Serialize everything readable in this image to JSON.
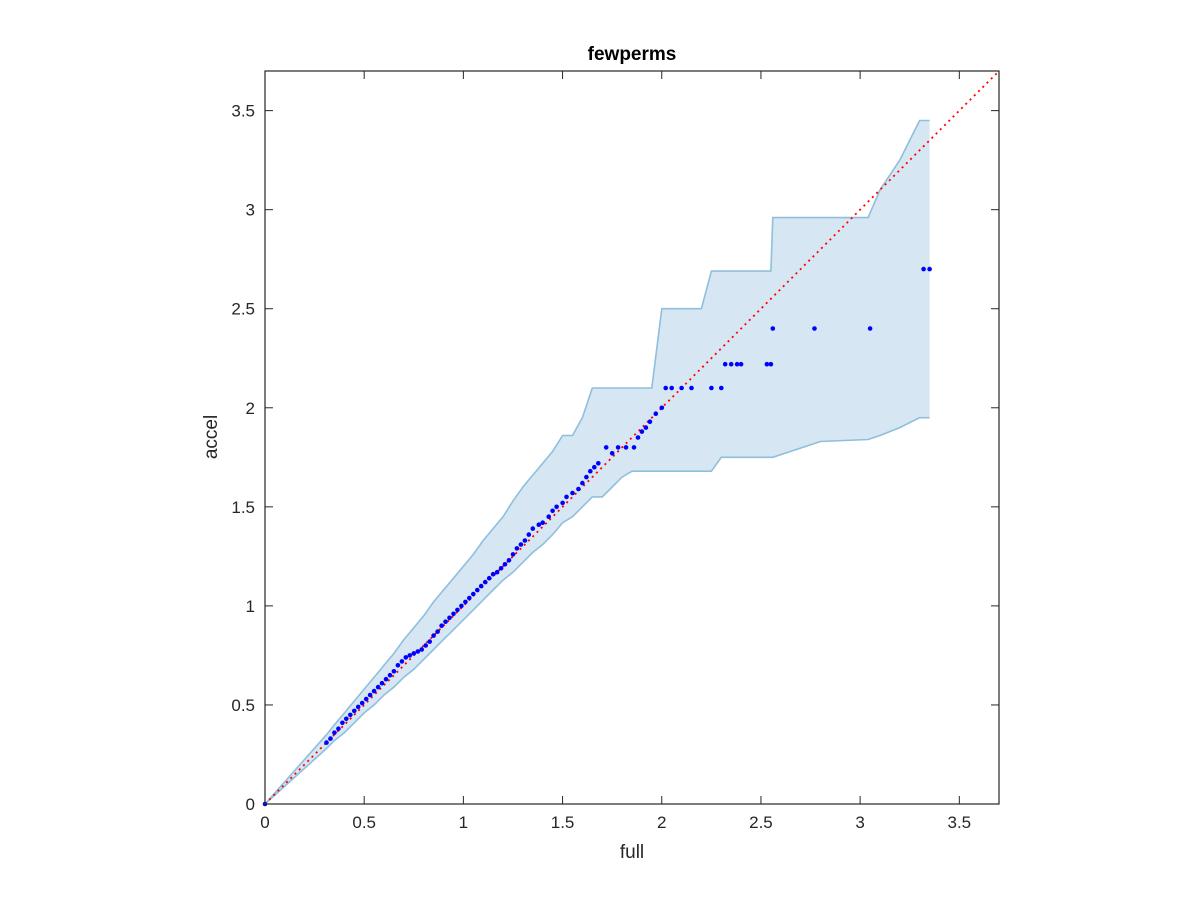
{
  "chart_data": {
    "type": "scatter",
    "title": "fewperms",
    "xlabel": "full",
    "ylabel": "accel",
    "xlim": [
      0,
      3.7
    ],
    "ylim": [
      0,
      3.7
    ],
    "xticks": [
      0,
      0.5,
      1,
      1.5,
      2,
      2.5,
      3,
      3.5
    ],
    "yticks": [
      0,
      0.5,
      1,
      1.5,
      2,
      2.5,
      3,
      3.5
    ],
    "xtick_labels": [
      "0",
      "0.5",
      "1",
      "1.5",
      "2",
      "2.5",
      "3",
      "3.5"
    ],
    "ytick_labels": [
      "0",
      "0.5",
      "1",
      "1.5",
      "2",
      "2.5",
      "3",
      "3.5"
    ],
    "grid": false,
    "colors": {
      "points": "#0000ff",
      "reference_line": "#ff0000",
      "band_fill": "#d6e6f3",
      "band_edge": "#8fbfdc",
      "axes": "#262626"
    },
    "reference_line": {
      "x": [
        0,
        3.7
      ],
      "y": [
        0,
        3.7
      ],
      "style": "dotted"
    },
    "band": {
      "x": [
        0,
        0.31,
        0.35,
        0.4,
        0.45,
        0.5,
        0.55,
        0.6,
        0.65,
        0.7,
        0.75,
        0.8,
        0.85,
        0.9,
        0.95,
        1.0,
        1.05,
        1.1,
        1.15,
        1.2,
        1.25,
        1.3,
        1.35,
        1.4,
        1.45,
        1.5,
        1.55,
        1.6,
        1.65,
        1.68,
        1.7,
        1.75,
        1.8,
        1.85,
        1.9,
        1.95,
        2.0,
        2.05,
        2.1,
        2.2,
        2.25,
        2.3,
        2.55,
        2.56,
        2.8,
        3.04,
        3.1,
        3.2,
        3.3,
        3.35
      ],
      "upper": [
        0,
        0.35,
        0.4,
        0.46,
        0.52,
        0.58,
        0.64,
        0.7,
        0.76,
        0.83,
        0.89,
        0.95,
        1.02,
        1.08,
        1.14,
        1.2,
        1.26,
        1.33,
        1.39,
        1.45,
        1.53,
        1.6,
        1.66,
        1.72,
        1.78,
        1.86,
        1.86,
        1.95,
        2.1,
        2.1,
        2.1,
        2.1,
        2.1,
        2.1,
        2.1,
        2.1,
        2.5,
        2.5,
        2.5,
        2.5,
        2.69,
        2.69,
        2.69,
        2.96,
        2.96,
        2.96,
        3.1,
        3.25,
        3.45,
        3.45
      ],
      "lower": [
        0,
        0.28,
        0.32,
        0.36,
        0.41,
        0.46,
        0.5,
        0.55,
        0.59,
        0.64,
        0.68,
        0.73,
        0.78,
        0.83,
        0.88,
        0.93,
        0.98,
        1.03,
        1.08,
        1.13,
        1.17,
        1.22,
        1.27,
        1.31,
        1.36,
        1.42,
        1.45,
        1.5,
        1.55,
        1.55,
        1.55,
        1.6,
        1.65,
        1.68,
        1.68,
        1.68,
        1.68,
        1.68,
        1.68,
        1.68,
        1.68,
        1.75,
        1.75,
        1.75,
        1.83,
        1.84,
        1.86,
        1.9,
        1.95,
        1.95
      ]
    },
    "series": [
      {
        "x": [
          0.0,
          0.31,
          0.33,
          0.35,
          0.37,
          0.39,
          0.41,
          0.43,
          0.45,
          0.47,
          0.49,
          0.51,
          0.53,
          0.55,
          0.57,
          0.59,
          0.61,
          0.63,
          0.65,
          0.67,
          0.69,
          0.71,
          0.73,
          0.75,
          0.77,
          0.79,
          0.81,
          0.83,
          0.85,
          0.87,
          0.89,
          0.91,
          0.93,
          0.95,
          0.97,
          0.99,
          1.01,
          1.03,
          1.05,
          1.07,
          1.09,
          1.11,
          1.13,
          1.15,
          1.17,
          1.19,
          1.21,
          1.23,
          1.25,
          1.27,
          1.29,
          1.31,
          1.33,
          1.35,
          1.38,
          1.4,
          1.43,
          1.45,
          1.47,
          1.5,
          1.52,
          1.55,
          1.58,
          1.6,
          1.62,
          1.64,
          1.66,
          1.68,
          1.72,
          1.75,
          1.78,
          1.82,
          1.86,
          1.88,
          1.9,
          1.92,
          1.94,
          1.97,
          2.0,
          2.02,
          2.05,
          2.1,
          2.15,
          2.25,
          2.3,
          2.32,
          2.35,
          2.38,
          2.4,
          2.53,
          2.55,
          2.56,
          2.77,
          3.05,
          3.32,
          3.35
        ],
        "y": [
          0.0,
          0.31,
          0.33,
          0.36,
          0.38,
          0.41,
          0.43,
          0.45,
          0.47,
          0.49,
          0.51,
          0.53,
          0.55,
          0.57,
          0.59,
          0.61,
          0.63,
          0.65,
          0.67,
          0.7,
          0.72,
          0.74,
          0.75,
          0.76,
          0.77,
          0.78,
          0.8,
          0.82,
          0.85,
          0.87,
          0.9,
          0.92,
          0.94,
          0.96,
          0.98,
          1.0,
          1.02,
          1.04,
          1.06,
          1.08,
          1.1,
          1.12,
          1.14,
          1.16,
          1.17,
          1.19,
          1.21,
          1.23,
          1.26,
          1.29,
          1.31,
          1.33,
          1.36,
          1.39,
          1.41,
          1.42,
          1.45,
          1.48,
          1.5,
          1.52,
          1.55,
          1.57,
          1.59,
          1.62,
          1.65,
          1.68,
          1.7,
          1.72,
          1.8,
          1.77,
          1.8,
          1.8,
          1.8,
          1.85,
          1.88,
          1.9,
          1.93,
          1.97,
          2.0,
          2.1,
          2.1,
          2.1,
          2.1,
          2.1,
          2.1,
          2.22,
          2.22,
          2.22,
          2.22,
          2.22,
          2.22,
          2.4,
          2.4,
          2.4,
          2.7,
          2.7
        ]
      }
    ]
  }
}
